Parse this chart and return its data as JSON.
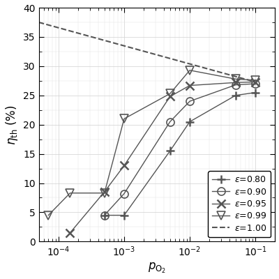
{
  "title": "",
  "xlabel": "$p_{\\mathrm{O_2}}$",
  "ylabel": "$\\eta_{\\mathrm{th}}$ (%)",
  "xlim": [
    5e-05,
    0.2
  ],
  "ylim": [
    0,
    40
  ],
  "yticks": [
    0,
    5,
    10,
    15,
    20,
    25,
    30,
    35,
    40
  ],
  "series": {
    "eps080": {
      "label": "$\\varepsilon$=0.80",
      "marker": "+",
      "x": [
        0.0005,
        0.001,
        0.005,
        0.01,
        0.05,
        0.1
      ],
      "y": [
        4.5,
        4.5,
        15.5,
        20.5,
        25.0,
        25.5
      ]
    },
    "eps090": {
      "label": "$\\varepsilon$=0.90",
      "marker": "o",
      "x": [
        0.0005,
        0.001,
        0.005,
        0.01,
        0.05,
        0.1
      ],
      "y": [
        4.5,
        8.2,
        20.5,
        24.0,
        26.8,
        27.0
      ]
    },
    "eps095": {
      "label": "$\\varepsilon$=0.95",
      "marker": "x",
      "x": [
        0.00015,
        0.0005,
        0.001,
        0.005,
        0.01,
        0.05,
        0.1
      ],
      "y": [
        1.5,
        8.5,
        13.0,
        24.8,
        26.7,
        27.2,
        27.3
      ]
    },
    "eps099": {
      "label": "$\\varepsilon$=0.99",
      "marker": "v",
      "x": [
        7e-05,
        0.00015,
        0.0005,
        0.001,
        0.005,
        0.01,
        0.05,
        0.1
      ],
      "y": [
        4.5,
        8.3,
        8.3,
        21.0,
        25.3,
        29.3,
        27.8,
        27.6
      ]
    },
    "eps100": {
      "label": "$\\varepsilon$=1.00",
      "linestyle": "--",
      "x": [
        5e-05,
        0.1
      ],
      "y": [
        37.5,
        27.3
      ]
    }
  },
  "line_color": "#555555",
  "bg_color": "#ffffff"
}
